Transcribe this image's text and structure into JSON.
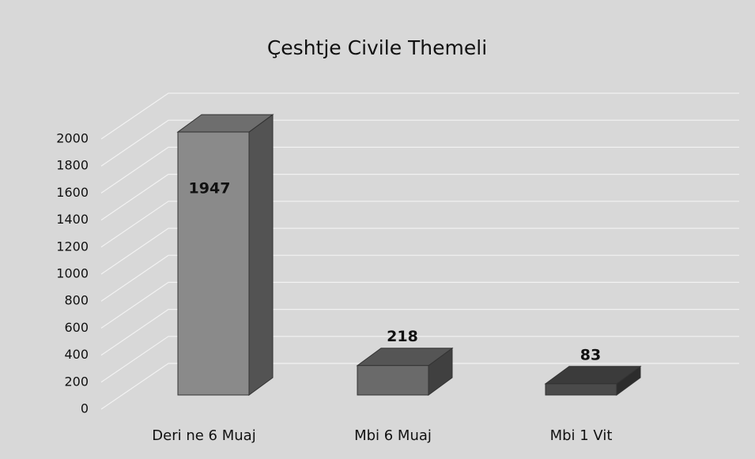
{
  "chart_data": {
    "type": "bar3d",
    "title": "Çeshtje Civile Themeli",
    "categories": [
      "Deri ne 6 Muaj",
      "Mbi 6 Muaj",
      "Mbi 1 Vit"
    ],
    "values": [
      1947,
      218,
      83
    ],
    "colors": [
      "#8a8a8a",
      "#6a6a6a",
      "#4a4a4a"
    ],
    "ylim": [
      0,
      2000
    ],
    "yticks": [
      0,
      200,
      400,
      600,
      800,
      1000,
      1200,
      1400,
      1600,
      1800,
      2000
    ],
    "grid": true
  }
}
